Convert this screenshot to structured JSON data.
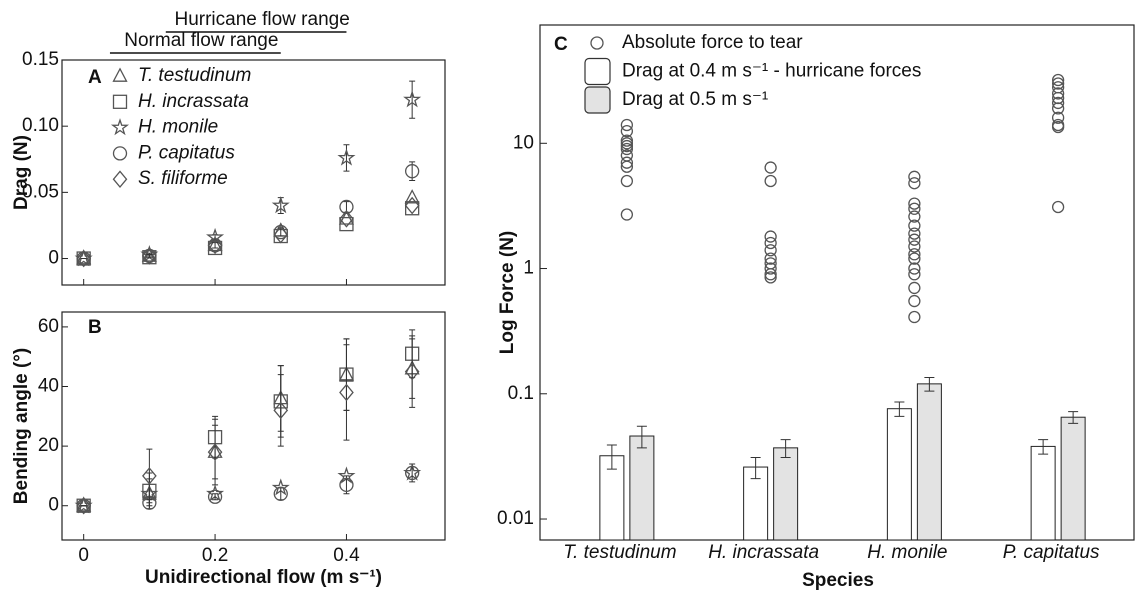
{
  "chart_data": [
    {
      "type": "scatter",
      "panel": "A",
      "ylabel": "Drag (N)",
      "x": [
        0,
        0.1,
        0.2,
        0.3,
        0.4,
        0.5
      ],
      "xlim": [
        -0.033,
        0.55
      ],
      "xticks": [
        0,
        0.2,
        0.4
      ],
      "ylim": [
        -0.02,
        0.15
      ],
      "yticks": [
        0,
        {
          "value": 0.05,
          "label": "0.05"
        },
        {
          "value": 0.1,
          "label": "0.10"
        },
        0.15
      ],
      "ranges": [
        {
          "label": "Hurricane flow range",
          "range": [
            0.125,
            0.4
          ]
        },
        {
          "label": "Normal flow range",
          "range": [
            0.04,
            0.3
          ]
        }
      ],
      "series": [
        {
          "name": "T. testudinum",
          "marker": "triangle",
          "color": "#555555",
          "values": [
            0,
            0.002,
            0.01,
            0.021,
            0.03,
            0.046
          ]
        },
        {
          "name": "H. incrassata",
          "marker": "square",
          "color": "#555555",
          "values": [
            0,
            0.001,
            0.008,
            0.017,
            0.026,
            0.038
          ]
        },
        {
          "name": "H. monile",
          "marker": "star",
          "color": "#555555",
          "values": [
            0,
            0.003,
            0.016,
            0.04,
            0.076,
            0.12
          ],
          "errors": [
            0,
            0.001,
            0.002,
            0.006,
            0.01,
            0.014
          ]
        },
        {
          "name": "P. capitatus",
          "marker": "circle",
          "color": "#555555",
          "values": [
            0,
            0.002,
            0.01,
            0.02,
            0.039,
            0.066
          ],
          "errors": [
            0,
            0.001,
            0.002,
            0.003,
            0.004,
            0.007
          ]
        },
        {
          "name": "S. filiforme",
          "marker": "diamond",
          "color": "#555555",
          "values": [
            0,
            0.002,
            0.01,
            0.018,
            0.03,
            0.04
          ]
        }
      ]
    },
    {
      "type": "scatter",
      "panel": "B",
      "ylabel": "Bending angle (°)",
      "xlabel": "Unidirectional flow (m s⁻¹)",
      "x": [
        0,
        0.1,
        0.2,
        0.3,
        0.4,
        0.5
      ],
      "xlim": [
        -0.033,
        0.55
      ],
      "xticks": [
        0,
        0.2,
        0.4
      ],
      "ylim": [
        -11.5,
        65
      ],
      "yticks": [
        0,
        20,
        40,
        60
      ],
      "series": [
        {
          "name": "T. testudinum",
          "marker": "triangle",
          "color": "#555555",
          "values": [
            0,
            4,
            18,
            36,
            44,
            46
          ],
          "errors": [
            0,
            5,
            9,
            11,
            12,
            10
          ]
        },
        {
          "name": "H. incrassata",
          "marker": "square",
          "color": "#555555",
          "values": [
            0,
            5,
            23,
            35,
            44,
            51
          ],
          "errors": [
            0,
            6,
            7,
            12,
            12,
            8
          ]
        },
        {
          "name": "H. monile",
          "marker": "star",
          "color": "#555555",
          "values": [
            0,
            4,
            4,
            6,
            10,
            11
          ]
        },
        {
          "name": "P. capitatus",
          "marker": "circle",
          "color": "#555555",
          "values": [
            0,
            1,
            3,
            4,
            7,
            11
          ],
          "errors": [
            0,
            1,
            1,
            2,
            3,
            3
          ]
        },
        {
          "name": "S. filiforme",
          "marker": "diamond",
          "color": "#555555",
          "values": [
            0,
            10,
            18,
            32,
            38,
            45
          ],
          "errors": [
            0,
            9,
            11,
            12,
            16,
            12
          ]
        }
      ]
    },
    {
      "type": "bar",
      "panel": "C",
      "ylabel": "Log Force (N)",
      "xlabel": "Species",
      "log_y": true,
      "categories": [
        "T. testudinum",
        "H. incrassata",
        "H. monile",
        "P. capitatus"
      ],
      "ylim": [
        0.0068,
        88
      ],
      "yticks": [
        0.01,
        0.1,
        1,
        10
      ],
      "series": [
        {
          "name": "Absolute force to tear",
          "type": "scatter",
          "color": "#555555",
          "values": [
            [
              14,
              12.5,
              10.5,
              10,
              9.5,
              9,
              8,
              7,
              6.5,
              5,
              2.7
            ],
            [
              6.4,
              5,
              1.8,
              1.6,
              1.4,
              1.2,
              1.1,
              1,
              0.9,
              0.85
            ],
            [
              5.4,
              4.8,
              3.3,
              3,
              2.6,
              2.2,
              1.9,
              1.7,
              1.5,
              1.3,
              1.2,
              1,
              0.9,
              0.7,
              0.55,
              0.41
            ],
            [
              32,
              30,
              28,
              25,
              23,
              21,
              19,
              16,
              14,
              13.5,
              3.1
            ]
          ]
        },
        {
          "name": "Drag at 0.4 m s⁻¹ - hurricane forces",
          "type": "bar",
          "color": "#ffffff",
          "values": [
            0.032,
            0.026,
            0.076,
            0.038
          ],
          "errors": [
            0.007,
            0.005,
            0.01,
            0.005
          ]
        },
        {
          "name": "Drag at 0.5 m s⁻¹",
          "type": "bar",
          "color": "#e3e3e3",
          "values": [
            0.046,
            0.037,
            0.12,
            0.065
          ],
          "errors": [
            0.009,
            0.006,
            0.015,
            0.007
          ]
        }
      ]
    }
  ]
}
